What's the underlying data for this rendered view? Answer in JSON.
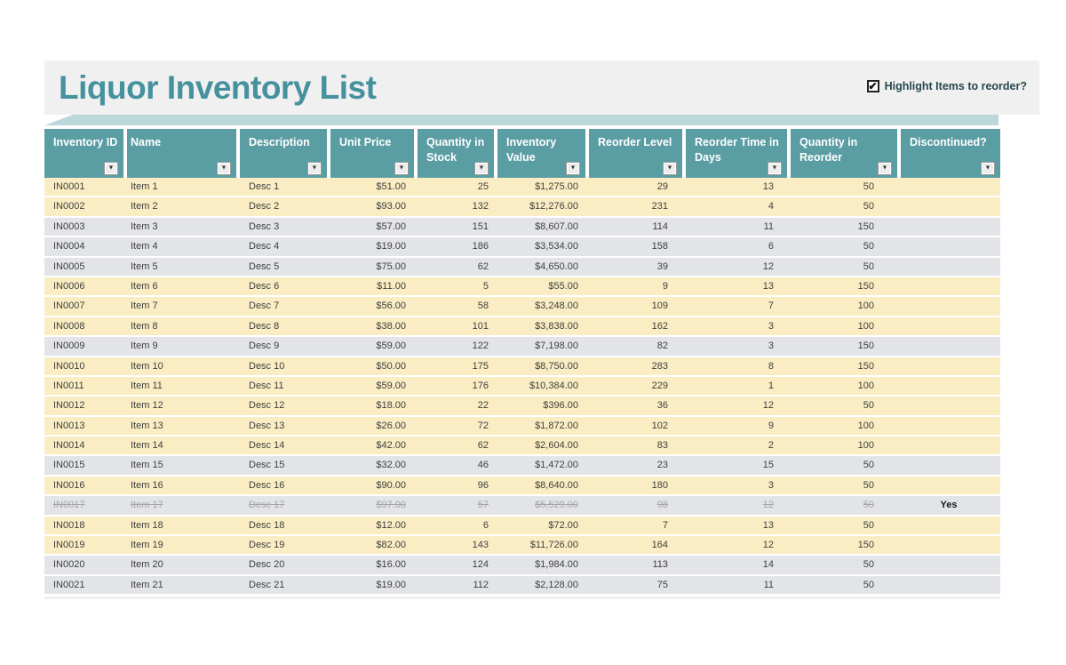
{
  "page": {
    "title": "Liquor Inventory List",
    "checkbox": {
      "label": "Highlight Items to reorder?",
      "checked": true,
      "check_glyph": "✔"
    }
  },
  "colors": {
    "accent_teal_header": "#5A9DA3",
    "title_teal": "#45919E",
    "banner_bg": "#F0F0F0",
    "ribbon_teal": "#BCD7DA",
    "row_highlight_yellow": "#FAEDC3",
    "row_normal_gray": "#E2E4E8",
    "row_text": "#3F3F3F",
    "discontinued_text": "#A6A6A6",
    "header_text": "#FFFFFF"
  },
  "table": {
    "columns": [
      {
        "label": "Inventory ID"
      },
      {
        "label": "Name"
      },
      {
        "label": "Description"
      },
      {
        "label": "Unit Price"
      },
      {
        "label": "Quantity in Stock"
      },
      {
        "label": "Inventory Value"
      },
      {
        "label": "Reorder Level"
      },
      {
        "label": "Reorder Time in Days"
      },
      {
        "label": "Quantity in Reorder"
      },
      {
        "label": "Discontinued?"
      }
    ],
    "rows": [
      {
        "highlight": true,
        "discontinued": false,
        "cells": [
          "IN0001",
          "Item 1",
          "Desc 1",
          "$51.00",
          "25",
          "$1,275.00",
          "29",
          "13",
          "50",
          ""
        ]
      },
      {
        "highlight": true,
        "discontinued": false,
        "cells": [
          "IN0002",
          "Item 2",
          "Desc 2",
          "$93.00",
          "132",
          "$12,276.00",
          "231",
          "4",
          "50",
          ""
        ]
      },
      {
        "highlight": false,
        "discontinued": false,
        "cells": [
          "IN0003",
          "Item 3",
          "Desc 3",
          "$57.00",
          "151",
          "$8,607.00",
          "114",
          "11",
          "150",
          ""
        ]
      },
      {
        "highlight": false,
        "discontinued": false,
        "cells": [
          "IN0004",
          "Item 4",
          "Desc 4",
          "$19.00",
          "186",
          "$3,534.00",
          "158",
          "6",
          "50",
          ""
        ]
      },
      {
        "highlight": false,
        "discontinued": false,
        "cells": [
          "IN0005",
          "Item 5",
          "Desc 5",
          "$75.00",
          "62",
          "$4,650.00",
          "39",
          "12",
          "50",
          ""
        ]
      },
      {
        "highlight": true,
        "discontinued": false,
        "cells": [
          "IN0006",
          "Item 6",
          "Desc 6",
          "$11.00",
          "5",
          "$55.00",
          "9",
          "13",
          "150",
          ""
        ]
      },
      {
        "highlight": true,
        "discontinued": false,
        "cells": [
          "IN0007",
          "Item 7",
          "Desc 7",
          "$56.00",
          "58",
          "$3,248.00",
          "109",
          "7",
          "100",
          ""
        ]
      },
      {
        "highlight": true,
        "discontinued": false,
        "cells": [
          "IN0008",
          "Item 8",
          "Desc 8",
          "$38.00",
          "101",
          "$3,838.00",
          "162",
          "3",
          "100",
          ""
        ]
      },
      {
        "highlight": false,
        "discontinued": false,
        "cells": [
          "IN0009",
          "Item 9",
          "Desc 9",
          "$59.00",
          "122",
          "$7,198.00",
          "82",
          "3",
          "150",
          ""
        ]
      },
      {
        "highlight": true,
        "discontinued": false,
        "cells": [
          "IN0010",
          "Item 10",
          "Desc 10",
          "$50.00",
          "175",
          "$8,750.00",
          "283",
          "8",
          "150",
          ""
        ]
      },
      {
        "highlight": true,
        "discontinued": false,
        "cells": [
          "IN0011",
          "Item 11",
          "Desc 11",
          "$59.00",
          "176",
          "$10,384.00",
          "229",
          "1",
          "100",
          ""
        ]
      },
      {
        "highlight": true,
        "discontinued": false,
        "cells": [
          "IN0012",
          "Item 12",
          "Desc 12",
          "$18.00",
          "22",
          "$396.00",
          "36",
          "12",
          "50",
          ""
        ]
      },
      {
        "highlight": true,
        "discontinued": false,
        "cells": [
          "IN0013",
          "Item 13",
          "Desc 13",
          "$26.00",
          "72",
          "$1,872.00",
          "102",
          "9",
          "100",
          ""
        ]
      },
      {
        "highlight": true,
        "discontinued": false,
        "cells": [
          "IN0014",
          "Item 14",
          "Desc 14",
          "$42.00",
          "62",
          "$2,604.00",
          "83",
          "2",
          "100",
          ""
        ]
      },
      {
        "highlight": false,
        "discontinued": false,
        "cells": [
          "IN0015",
          "Item 15",
          "Desc 15",
          "$32.00",
          "46",
          "$1,472.00",
          "23",
          "15",
          "50",
          ""
        ]
      },
      {
        "highlight": true,
        "discontinued": false,
        "cells": [
          "IN0016",
          "Item 16",
          "Desc 16",
          "$90.00",
          "96",
          "$8,640.00",
          "180",
          "3",
          "50",
          ""
        ]
      },
      {
        "highlight": false,
        "discontinued": true,
        "cells": [
          "IN0017",
          "Item 17",
          "Desc 17",
          "$97.00",
          "57",
          "$5,529.00",
          "98",
          "12",
          "50",
          "Yes"
        ]
      },
      {
        "highlight": true,
        "discontinued": false,
        "cells": [
          "IN0018",
          "Item 18",
          "Desc 18",
          "$12.00",
          "6",
          "$72.00",
          "7",
          "13",
          "50",
          ""
        ]
      },
      {
        "highlight": true,
        "discontinued": false,
        "cells": [
          "IN0019",
          "Item 19",
          "Desc 19",
          "$82.00",
          "143",
          "$11,726.00",
          "164",
          "12",
          "150",
          ""
        ]
      },
      {
        "highlight": false,
        "discontinued": false,
        "cells": [
          "IN0020",
          "Item 20",
          "Desc 20",
          "$16.00",
          "124",
          "$1,984.00",
          "113",
          "14",
          "50",
          ""
        ]
      },
      {
        "highlight": false,
        "discontinued": false,
        "cells": [
          "IN0021",
          "Item 21",
          "Desc 21",
          "$19.00",
          "112",
          "$2,128.00",
          "75",
          "11",
          "50",
          ""
        ]
      }
    ]
  },
  "icons": {
    "filter_dropdown": "▼"
  }
}
